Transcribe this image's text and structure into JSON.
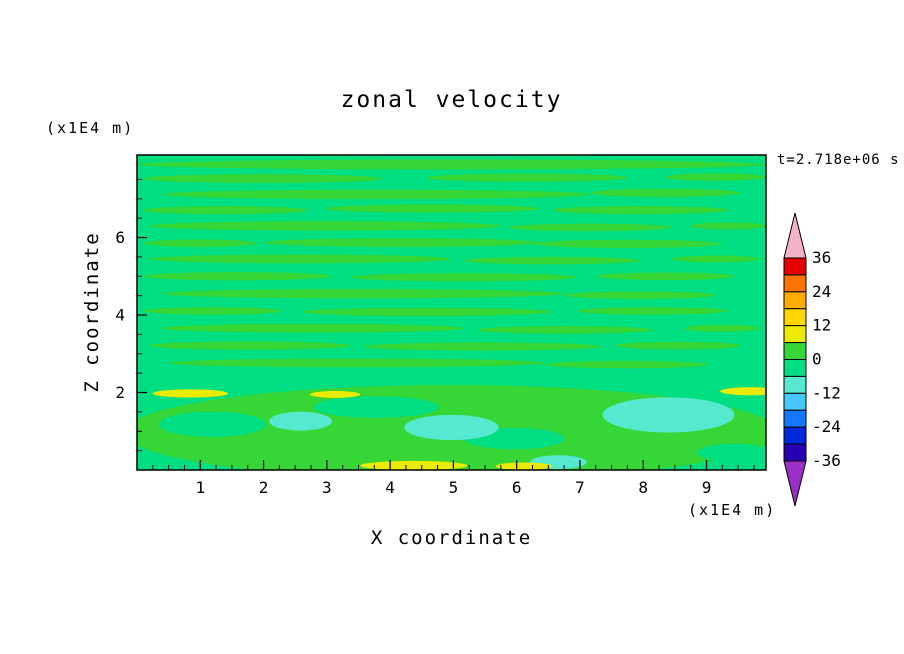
{
  "title": "zonal velocity",
  "time_label": "t=2.718e+06 s",
  "x_axis": {
    "label": "X coordinate",
    "unit_label": "(x1E4 m)",
    "min": 0,
    "max": 9.94,
    "major_ticks": [
      1,
      2,
      3,
      4,
      5,
      6,
      7,
      8,
      9
    ],
    "minor_step": 0.25
  },
  "y_axis": {
    "label": "Z coordinate",
    "unit_label": "(x1E4 m)",
    "min": 0,
    "max": 8.13,
    "major_ticks": [
      2,
      4,
      6
    ],
    "minor_step": 0.5
  },
  "colorbar": {
    "arrow_top_color": "#f2b2c8",
    "arrow_bottom_color": "#9b30c8",
    "box_colors_top_to_bottom": [
      "#e60000",
      "#ff7300",
      "#ffab00",
      "#ffd700",
      "#ebeb00",
      "#35d635",
      "#00de82",
      "#55ead0",
      "#46c8ff",
      "#1478ff",
      "#0028dc",
      "#2800b4"
    ],
    "labels_top_to_bottom": [
      "36",
      "24",
      "12",
      "0",
      "-12",
      "-24",
      "-36"
    ]
  },
  "chart_data": {
    "type": "heatmap",
    "subtype": "filled-contour",
    "title": "zonal velocity",
    "xlabel": "X coordinate",
    "ylabel": "Z coordinate",
    "x_unit": "(x1E4 m)",
    "y_unit": "(x1E4 m)",
    "time_annotation": "t=2.718e+06 s",
    "xlim": [
      0,
      9.94
    ],
    "ylim": [
      0,
      8.13
    ],
    "x_ticks": [
      1,
      2,
      3,
      4,
      5,
      6,
      7,
      8,
      9
    ],
    "y_ticks": [
      2,
      4,
      6
    ],
    "contour_interval": 6,
    "contour_levels": [
      -36,
      -30,
      -24,
      -18,
      -12,
      -6,
      0,
      6,
      12,
      18,
      24,
      30,
      36
    ],
    "colorbar_labels": [
      36,
      24,
      12,
      0,
      -12,
      -24,
      -36
    ],
    "legend_position": "right",
    "grid": false,
    "base_band": "-6..0",
    "band_colors": {
      "-6..0": "#00de82",
      "0..6": "#35d635",
      "-12..-6": "#55ead0",
      "6..12": "#ebeb00"
    },
    "field_summary": "Zonal velocity stays within +/-6 over nearly the whole section, arranged in thin horizontal streaks of the 0..6 band over a -6..0 background; below z ~ 2x1E4 m the 0..6 band broadens, with -12..-6 pools (around x ~ 2.5, 5, and a large one near x ~ 8-9.5) and thin 6..12 streaks near z ~ 2 at both side walls and along the bottom boundary near x ~ 4-6.",
    "field_regions": [
      {
        "band": "0..6",
        "cx": 0.5,
        "cy": 0.03,
        "rx": 0.5,
        "ry": 0.016
      },
      {
        "band": "0..6",
        "cx": 0.2,
        "cy": 0.075,
        "rx": 0.19,
        "ry": 0.014
      },
      {
        "band": "0..6",
        "cx": 0.62,
        "cy": 0.072,
        "rx": 0.16,
        "ry": 0.013
      },
      {
        "band": "0..6",
        "cx": 0.92,
        "cy": 0.07,
        "rx": 0.08,
        "ry": 0.012
      },
      {
        "band": "0..6",
        "cx": 0.38,
        "cy": 0.125,
        "rx": 0.34,
        "ry": 0.015
      },
      {
        "band": "0..6",
        "cx": 0.84,
        "cy": 0.12,
        "rx": 0.12,
        "ry": 0.013
      },
      {
        "band": "0..6",
        "cx": 0.14,
        "cy": 0.175,
        "rx": 0.13,
        "ry": 0.013
      },
      {
        "band": "0..6",
        "cx": 0.47,
        "cy": 0.17,
        "rx": 0.17,
        "ry": 0.013
      },
      {
        "band": "0..6",
        "cx": 0.8,
        "cy": 0.175,
        "rx": 0.14,
        "ry": 0.013
      },
      {
        "band": "0..6",
        "cx": 0.3,
        "cy": 0.225,
        "rx": 0.28,
        "ry": 0.015
      },
      {
        "band": "0..6",
        "cx": 0.72,
        "cy": 0.23,
        "rx": 0.13,
        "ry": 0.012
      },
      {
        "band": "0..6",
        "cx": 0.94,
        "cy": 0.225,
        "rx": 0.06,
        "ry": 0.011
      },
      {
        "band": "0..6",
        "cx": 0.1,
        "cy": 0.28,
        "rx": 0.09,
        "ry": 0.012
      },
      {
        "band": "0..6",
        "cx": 0.42,
        "cy": 0.278,
        "rx": 0.22,
        "ry": 0.014
      },
      {
        "band": "0..6",
        "cx": 0.78,
        "cy": 0.282,
        "rx": 0.15,
        "ry": 0.013
      },
      {
        "band": "0..6",
        "cx": 0.26,
        "cy": 0.33,
        "rx": 0.24,
        "ry": 0.014
      },
      {
        "band": "0..6",
        "cx": 0.66,
        "cy": 0.335,
        "rx": 0.14,
        "ry": 0.012
      },
      {
        "band": "0..6",
        "cx": 0.92,
        "cy": 0.33,
        "rx": 0.07,
        "ry": 0.011
      },
      {
        "band": "0..6",
        "cx": 0.16,
        "cy": 0.385,
        "rx": 0.15,
        "ry": 0.013
      },
      {
        "band": "0..6",
        "cx": 0.52,
        "cy": 0.388,
        "rx": 0.18,
        "ry": 0.013
      },
      {
        "band": "0..6",
        "cx": 0.84,
        "cy": 0.385,
        "rx": 0.11,
        "ry": 0.012
      },
      {
        "band": "0..6",
        "cx": 0.36,
        "cy": 0.44,
        "rx": 0.32,
        "ry": 0.015
      },
      {
        "band": "0..6",
        "cx": 0.8,
        "cy": 0.445,
        "rx": 0.12,
        "ry": 0.012
      },
      {
        "band": "0..6",
        "cx": 0.12,
        "cy": 0.495,
        "rx": 0.11,
        "ry": 0.012
      },
      {
        "band": "0..6",
        "cx": 0.46,
        "cy": 0.498,
        "rx": 0.2,
        "ry": 0.013
      },
      {
        "band": "0..6",
        "cx": 0.82,
        "cy": 0.495,
        "rx": 0.12,
        "ry": 0.012
      },
      {
        "band": "0..6",
        "cx": 0.28,
        "cy": 0.55,
        "rx": 0.24,
        "ry": 0.014
      },
      {
        "band": "0..6",
        "cx": 0.68,
        "cy": 0.555,
        "rx": 0.14,
        "ry": 0.012
      },
      {
        "band": "0..6",
        "cx": 0.93,
        "cy": 0.55,
        "rx": 0.06,
        "ry": 0.011
      },
      {
        "band": "0..6",
        "cx": 0.18,
        "cy": 0.605,
        "rx": 0.16,
        "ry": 0.013
      },
      {
        "band": "0..6",
        "cx": 0.55,
        "cy": 0.608,
        "rx": 0.19,
        "ry": 0.013
      },
      {
        "band": "0..6",
        "cx": 0.86,
        "cy": 0.605,
        "rx": 0.1,
        "ry": 0.012
      },
      {
        "band": "0..6",
        "cx": 0.35,
        "cy": 0.66,
        "rx": 0.3,
        "ry": 0.014
      },
      {
        "band": "0..6",
        "cx": 0.78,
        "cy": 0.665,
        "rx": 0.13,
        "ry": 0.012
      },
      {
        "band": "0..6",
        "cx": 0.5,
        "cy": 0.88,
        "rx": 0.52,
        "ry": 0.15
      },
      {
        "band": "-6..0",
        "cx": 0.12,
        "cy": 0.855,
        "rx": 0.085,
        "ry": 0.04
      },
      {
        "band": "-6..0",
        "cx": 0.38,
        "cy": 0.8,
        "rx": 0.1,
        "ry": 0.034
      },
      {
        "band": "-6..0",
        "cx": 0.6,
        "cy": 0.9,
        "rx": 0.08,
        "ry": 0.034
      },
      {
        "band": "-6..0",
        "cx": 0.95,
        "cy": 0.945,
        "rx": 0.06,
        "ry": 0.028
      },
      {
        "band": "-12..-6",
        "cx": 0.26,
        "cy": 0.845,
        "rx": 0.05,
        "ry": 0.03
      },
      {
        "band": "-12..-6",
        "cx": 0.5,
        "cy": 0.865,
        "rx": 0.075,
        "ry": 0.04
      },
      {
        "band": "-12..-6",
        "cx": 0.845,
        "cy": 0.825,
        "rx": 0.105,
        "ry": 0.056
      },
      {
        "band": "-12..-6",
        "cx": 0.67,
        "cy": 0.975,
        "rx": 0.045,
        "ry": 0.022
      },
      {
        "band": "6..12",
        "cx": 0.085,
        "cy": 0.757,
        "rx": 0.06,
        "ry": 0.013
      },
      {
        "band": "6..12",
        "cx": 0.975,
        "cy": 0.75,
        "rx": 0.048,
        "ry": 0.013
      },
      {
        "band": "6..12",
        "cx": 0.315,
        "cy": 0.76,
        "rx": 0.04,
        "ry": 0.011
      },
      {
        "band": "6..12",
        "cx": 0.44,
        "cy": 0.986,
        "rx": 0.085,
        "ry": 0.015
      },
      {
        "band": "6..12",
        "cx": 0.615,
        "cy": 0.988,
        "rx": 0.045,
        "ry": 0.012
      }
    ]
  }
}
